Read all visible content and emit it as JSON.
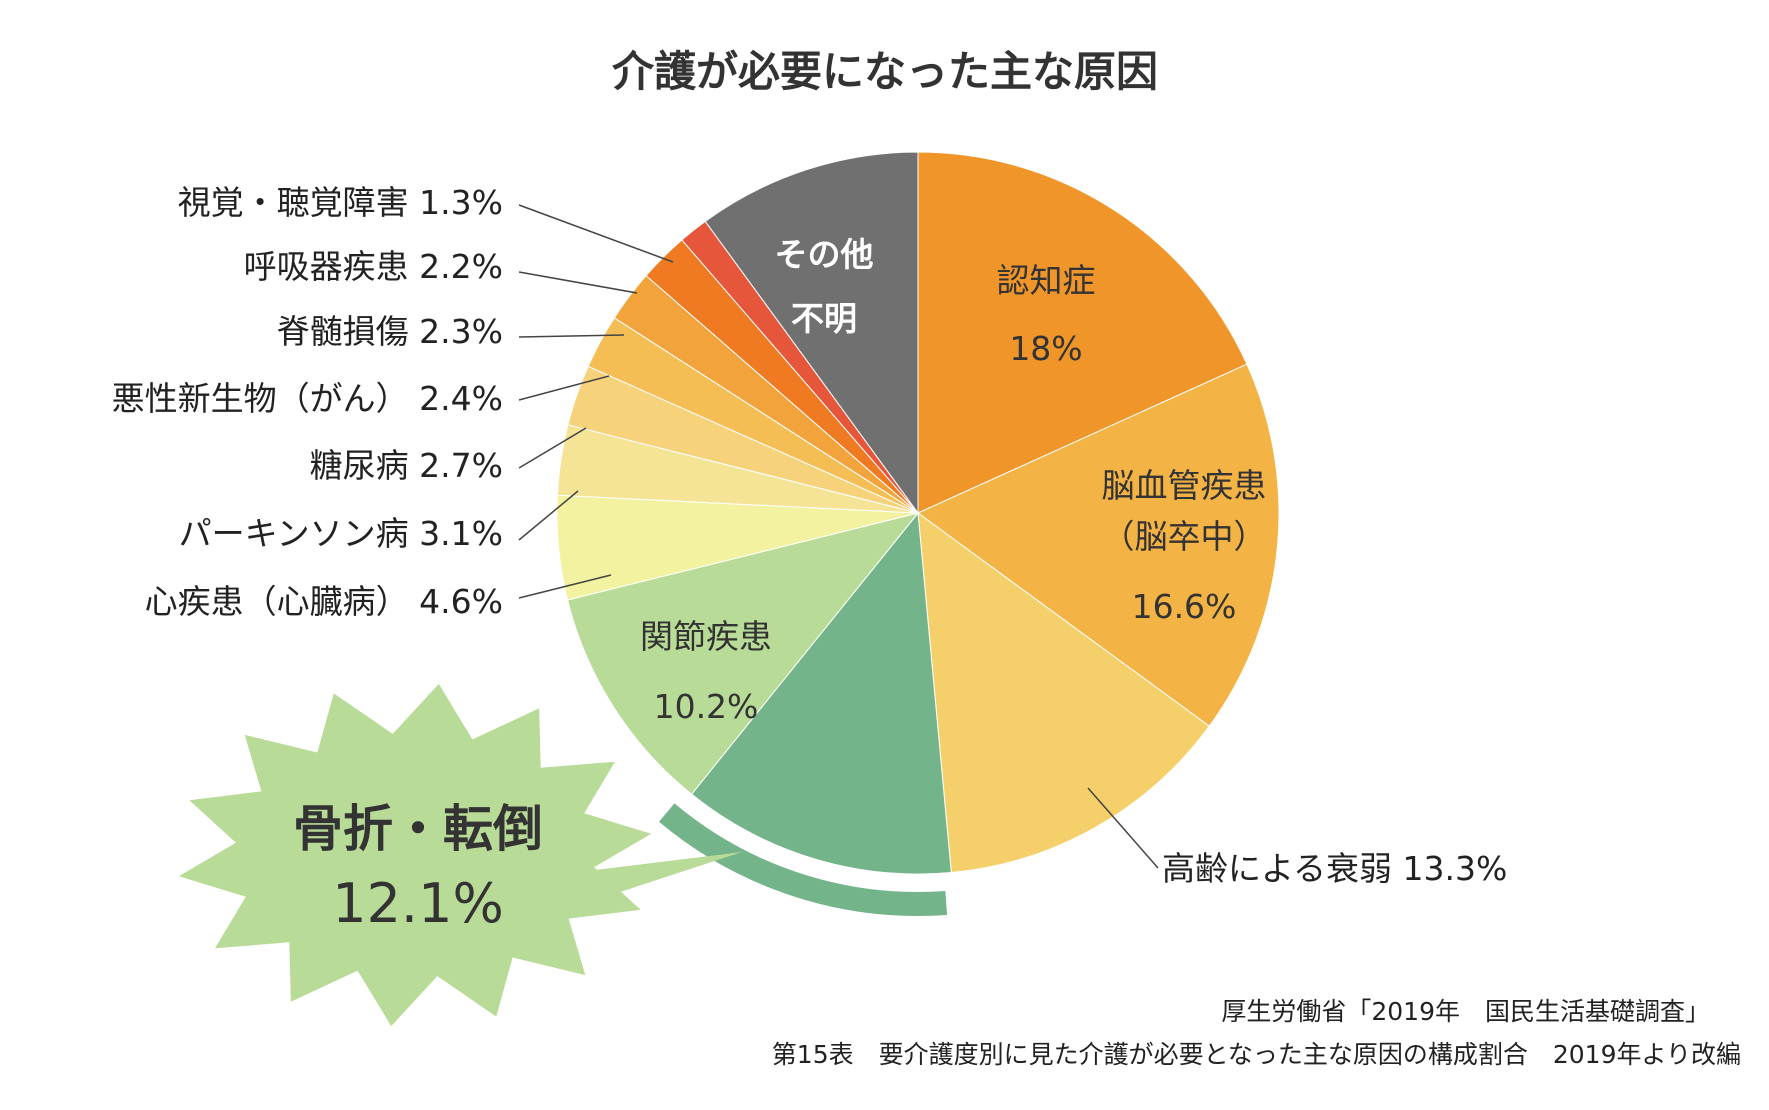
{
  "chart_data": {
    "type": "pie",
    "title": "介護が必要になった主な原因",
    "start": "12 o'clock, clockwise",
    "slices": [
      {
        "label": "認知症",
        "value": 18.0,
        "value_text": "18%",
        "color": "#F0952A"
      },
      {
        "label": "脳血管疾患（脳卒中）",
        "label_lines": [
          "脳血管疾患",
          "（脳卒中）"
        ],
        "value": 16.6,
        "value_text": "16.6%",
        "color": "#F4B345"
      },
      {
        "label": "高齢による衰弱",
        "value": 13.3,
        "value_text": "13.3%",
        "color": "#F5CF6A"
      },
      {
        "label": "骨折・転倒",
        "value": 12.1,
        "value_text": "12.1%",
        "color": "#74B48A",
        "highlight": true
      },
      {
        "label": "関節疾患",
        "value": 10.2,
        "value_text": "10.2%",
        "color": "#B9DB98"
      },
      {
        "label": "心疾患（心臓病）",
        "value": 4.6,
        "value_text": "4.6%",
        "color": "#F2F2A0"
      },
      {
        "label": "パーキンソン病",
        "value": 3.1,
        "value_text": "3.1%",
        "color": "#F6E496"
      },
      {
        "label": "糖尿病",
        "value": 2.7,
        "value_text": "2.7%",
        "color": "#F6D37A"
      },
      {
        "label": "悪性新生物（がん）",
        "value": 2.4,
        "value_text": "2.4%",
        "color": "#F5BE55"
      },
      {
        "label": "脊髄損傷",
        "value": 2.3,
        "value_text": "2.3%",
        "color": "#F3A33B"
      },
      {
        "label": "呼吸器疾患",
        "value": 2.2,
        "value_text": "2.2%",
        "color": "#EF7A22"
      },
      {
        "label": "視覚・聴覚障害",
        "value": 1.3,
        "value_text": "1.3%",
        "color": "#E6563A"
      },
      {
        "label": "その他・不明",
        "label_lines": [
          "その他",
          "不明"
        ],
        "value": 9.9,
        "value_text": "",
        "color": "#707070"
      }
    ],
    "highlight_color": "#B9DB98"
  },
  "source": {
    "line1": "厚生労働省「2019年　国民生活基礎調査」",
    "line2": "第15表　要介護度別に見た介護が必要となった主な原因の構成割合　2019年より改編"
  }
}
